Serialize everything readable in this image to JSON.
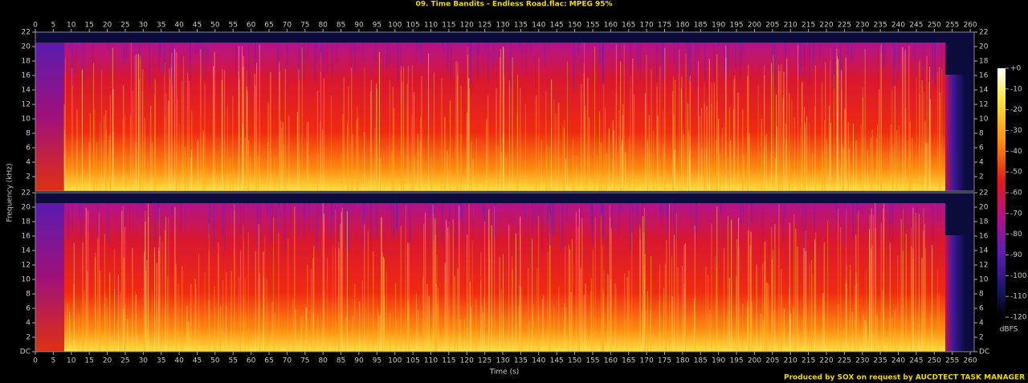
{
  "chart_data": {
    "type": "spectrogram",
    "title": "09. Time Bandits - Endless Road.flac: MPEG 95%",
    "xlabel": "Time (s)",
    "ylabel": "Frequency (kHz)",
    "xlim": [
      0,
      261.1
    ],
    "xticks": [
      0,
      5,
      10,
      15,
      20,
      25,
      30,
      35,
      40,
      45,
      50,
      55,
      60,
      65,
      70,
      75,
      80,
      85,
      90,
      95,
      100,
      105,
      110,
      115,
      120,
      125,
      130,
      135,
      140,
      145,
      150,
      155,
      160,
      165,
      170,
      175,
      180,
      185,
      190,
      195,
      200,
      205,
      210,
      215,
      220,
      225,
      230,
      235,
      240,
      245,
      250,
      255,
      260
    ],
    "channels": [
      {
        "ylim": [
          0,
          22
        ],
        "yticks": [
          2,
          4,
          6,
          8,
          10,
          12,
          14,
          16,
          18,
          20,
          22
        ]
      },
      {
        "ylim": [
          0,
          22
        ],
        "yticks": [
          {
            "value": 0,
            "label": "DC"
          },
          2,
          4,
          6,
          8,
          10,
          12,
          14,
          16,
          18,
          20,
          22
        ]
      }
    ],
    "colorbar": {
      "label": "dBFS",
      "lim": [
        -120,
        0
      ],
      "ticks": [
        {
          "value": 0,
          "label": "+0"
        },
        -10,
        -20,
        -30,
        -40,
        -50,
        -60,
        -70,
        -80,
        -90,
        -100,
        -110,
        -120
      ]
    },
    "footer": "Produced by SOX on request by AUCDTECT TASK MANAGER"
  }
}
